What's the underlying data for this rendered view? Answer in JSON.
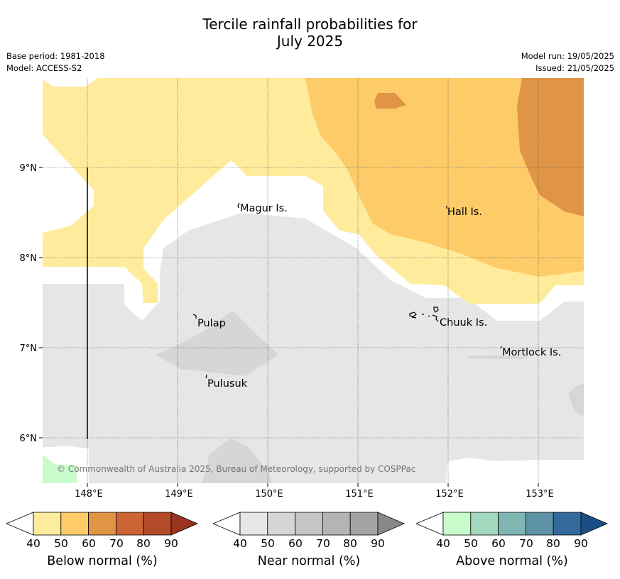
{
  "title_line1": "Tercile rainfall probabilities for",
  "title_line2": "July 2025",
  "base_period": "Base period: 1981-2018",
  "model": "Model: ACCESS-S2",
  "model_run": "Model run: 19/05/2025",
  "issued": "Issued: 21/05/2025",
  "copyright": "© Commonwealth of Australia 2025, Bureau of Meteorology, supported by COSPPac",
  "lon_ticks": [
    "148°E",
    "149°E",
    "150°E",
    "151°E",
    "152°E",
    "153°E"
  ],
  "lat_ticks": [
    "9°N",
    "8°N",
    "7°N",
    "6°N"
  ],
  "places": {
    "magur": "Magur Is.",
    "hall": "Hall Is.",
    "pulap": "Pulap",
    "chuuk": "Chuuk Is.",
    "mortlock": "Mortlock Is.",
    "pulusuk": "Pulusuk"
  },
  "colorbars": {
    "below": {
      "label": "Below normal (%)",
      "ticks": [
        "40",
        "50",
        "60",
        "70",
        "80",
        "90"
      ],
      "colors": [
        "#ffeb9c",
        "#fdcb68",
        "#e09445",
        "#cc6533",
        "#b34b28",
        "#98341f"
      ]
    },
    "near": {
      "label": "Near normal (%)",
      "ticks": [
        "40",
        "50",
        "60",
        "70",
        "80",
        "90"
      ],
      "colors": [
        "#e6e6e6",
        "#d6d6d6",
        "#c6c6c6",
        "#b4b4b4",
        "#a3a3a3",
        "#888888"
      ]
    },
    "above": {
      "label": "Above normal (%)",
      "ticks": [
        "40",
        "50",
        "60",
        "70",
        "80",
        "90"
      ],
      "colors": [
        "#c9fccb",
        "#a4d8be",
        "#80b6b2",
        "#5d93a5",
        "#336a9c",
        "#194f86"
      ]
    }
  }
}
